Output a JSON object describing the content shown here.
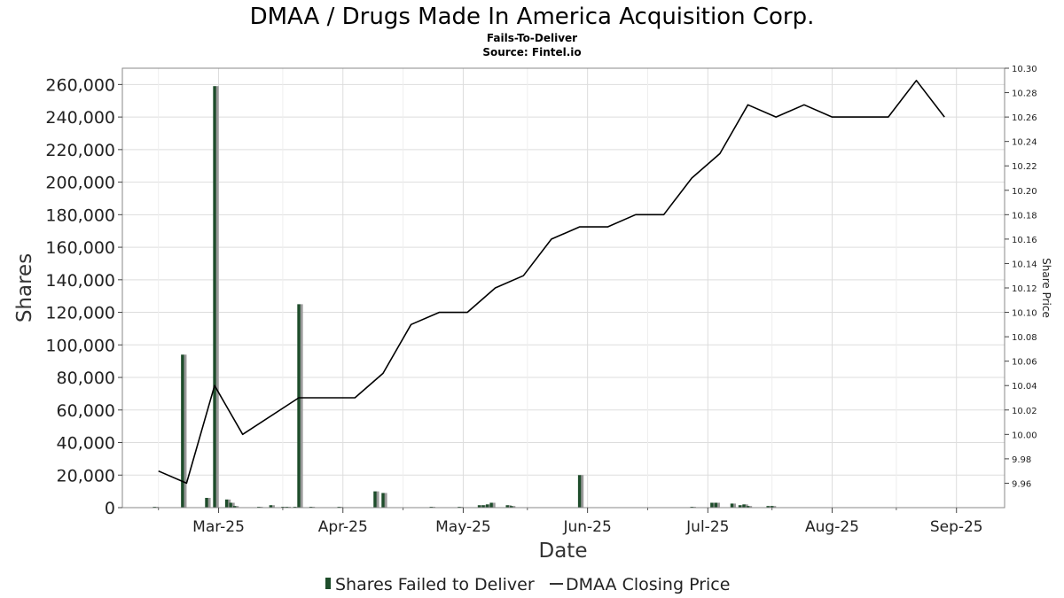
{
  "title": "DMAA / Drugs Made In America Acquisition Corp.",
  "subtitle": "Fails-To-Deliver",
  "source": "Source: Fintel.io",
  "colors": {
    "bar": "#1e4d2b",
    "bar_shadow": "#9a9a9a",
    "line": "#000000",
    "grid": "#dddddd"
  },
  "chart_data": {
    "type": "bar",
    "xlabel": "Date",
    "ylabel": "Shares",
    "y2label": "Share Price",
    "ylim": [
      0,
      270000
    ],
    "y2lim": [
      9.94,
      10.3
    ],
    "x_range": [
      "2025-02-05",
      "2025-09-13"
    ],
    "yticks": [
      0,
      20000,
      40000,
      60000,
      80000,
      100000,
      120000,
      140000,
      160000,
      180000,
      200000,
      220000,
      240000,
      260000
    ],
    "ytick_labels": [
      "0",
      "20,000",
      "40,000",
      "60,000",
      "80,000",
      "100,000",
      "120,000",
      "140,000",
      "160,000",
      "180,000",
      "200,000",
      "220,000",
      "240,000",
      "260,000"
    ],
    "y2ticks": [
      9.96,
      9.98,
      10.0,
      10.02,
      10.04,
      10.06,
      10.08,
      10.1,
      10.12,
      10.14,
      10.16,
      10.18,
      10.2,
      10.22,
      10.24,
      10.26,
      10.28,
      10.3
    ],
    "y2tick_labels": [
      "9.96",
      "9.98",
      "10.00",
      "10.02",
      "10.04",
      "10.06",
      "10.08",
      "10.10",
      "10.12",
      "10.14",
      "10.16",
      "10.18",
      "10.20",
      "10.22",
      "10.24",
      "10.26",
      "10.28",
      "10.30"
    ],
    "xticks": [
      {
        "date": "2025-03-01",
        "label": "Mar-25"
      },
      {
        "date": "2025-04-01",
        "label": "Apr-25"
      },
      {
        "date": "2025-05-01",
        "label": "May-25"
      },
      {
        "date": "2025-06-01",
        "label": "Jun-25"
      },
      {
        "date": "2025-07-01",
        "label": "Jul-25"
      },
      {
        "date": "2025-08-01",
        "label": "Aug-25"
      },
      {
        "date": "2025-09-01",
        "label": "Sep-25"
      }
    ],
    "grid": true,
    "legend_position": "bottom-center",
    "series": [
      {
        "name": "Shares Failed to Deliver",
        "type": "bar",
        "axis": "left",
        "points": [
          {
            "x": "2025-02-13",
            "y": 500
          },
          {
            "x": "2025-02-20",
            "y": 94000
          },
          {
            "x": "2025-02-26",
            "y": 6000
          },
          {
            "x": "2025-02-28",
            "y": 259000
          },
          {
            "x": "2025-03-03",
            "y": 5000
          },
          {
            "x": "2025-03-04",
            "y": 3000
          },
          {
            "x": "2025-03-05",
            "y": 1000
          },
          {
            "x": "2025-03-11",
            "y": 500
          },
          {
            "x": "2025-03-14",
            "y": 1500
          },
          {
            "x": "2025-03-17",
            "y": 500
          },
          {
            "x": "2025-03-18",
            "y": 500
          },
          {
            "x": "2025-03-20",
            "y": 500
          },
          {
            "x": "2025-03-21",
            "y": 125000
          },
          {
            "x": "2025-03-24",
            "y": 500
          },
          {
            "x": "2025-03-31",
            "y": 500
          },
          {
            "x": "2025-04-09",
            "y": 10000
          },
          {
            "x": "2025-04-11",
            "y": 9000
          },
          {
            "x": "2025-04-23",
            "y": 500
          },
          {
            "x": "2025-04-30",
            "y": 500
          },
          {
            "x": "2025-05-05",
            "y": 1500
          },
          {
            "x": "2025-05-06",
            "y": 1500
          },
          {
            "x": "2025-05-07",
            "y": 2000
          },
          {
            "x": "2025-05-08",
            "y": 3000
          },
          {
            "x": "2025-05-12",
            "y": 1500
          },
          {
            "x": "2025-05-13",
            "y": 1000
          },
          {
            "x": "2025-05-30",
            "y": 20000
          },
          {
            "x": "2025-06-27",
            "y": 500
          },
          {
            "x": "2025-07-02",
            "y": 3000
          },
          {
            "x": "2025-07-03",
            "y": 3000
          },
          {
            "x": "2025-07-07",
            "y": 2500
          },
          {
            "x": "2025-07-09",
            "y": 1500
          },
          {
            "x": "2025-07-10",
            "y": 2000
          },
          {
            "x": "2025-07-11",
            "y": 1000
          },
          {
            "x": "2025-07-16",
            "y": 1000
          },
          {
            "x": "2025-07-17",
            "y": 1000
          }
        ]
      },
      {
        "name": "DMAA Closing Price",
        "type": "line",
        "axis": "right",
        "points": [
          {
            "x": "2025-02-14",
            "y": 9.97
          },
          {
            "x": "2025-02-21",
            "y": 9.96
          },
          {
            "x": "2025-02-28",
            "y": 10.04
          },
          {
            "x": "2025-03-07",
            "y": 10.0
          },
          {
            "x": "2025-03-21",
            "y": 10.03
          },
          {
            "x": "2025-04-04",
            "y": 10.03
          },
          {
            "x": "2025-04-11",
            "y": 10.05
          },
          {
            "x": "2025-04-18",
            "y": 10.09
          },
          {
            "x": "2025-04-25",
            "y": 10.1
          },
          {
            "x": "2025-05-02",
            "y": 10.1
          },
          {
            "x": "2025-05-09",
            "y": 10.12
          },
          {
            "x": "2025-05-16",
            "y": 10.13
          },
          {
            "x": "2025-05-23",
            "y": 10.16
          },
          {
            "x": "2025-05-30",
            "y": 10.17
          },
          {
            "x": "2025-06-06",
            "y": 10.17
          },
          {
            "x": "2025-06-13",
            "y": 10.18
          },
          {
            "x": "2025-06-20",
            "y": 10.18
          },
          {
            "x": "2025-06-27",
            "y": 10.21
          },
          {
            "x": "2025-07-04",
            "y": 10.23
          },
          {
            "x": "2025-07-11",
            "y": 10.27
          },
          {
            "x": "2025-07-18",
            "y": 10.26
          },
          {
            "x": "2025-07-25",
            "y": 10.27
          },
          {
            "x": "2025-08-01",
            "y": 10.26
          },
          {
            "x": "2025-08-08",
            "y": 10.26
          },
          {
            "x": "2025-08-15",
            "y": 10.26
          },
          {
            "x": "2025-08-22",
            "y": 10.29
          },
          {
            "x": "2025-08-29",
            "y": 10.26
          }
        ]
      }
    ]
  }
}
